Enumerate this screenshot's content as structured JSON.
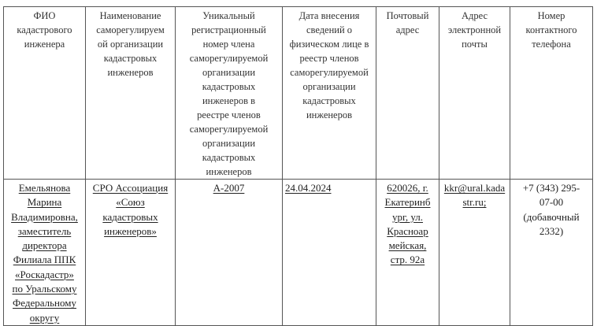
{
  "table": {
    "headers": [
      "ФИО\nкадастрового\nинженера",
      "Наименование\nсаморегулируем\nой организации\nкадастровых\nинженеров",
      "Уникальный\nрегистрационный\nномер члена\nсаморегулируемой\nорганизации\nкадастровых\nинженеров   в\nреестре  членов\nсаморегулируемой\nорганизации\nкадастровых\nинженеров",
      "Дата внесения\nсведений о\nфизическом лице в\nреестр членов\nсаморегулируемой\nорганизации\nкадастровых\nинженеров",
      "Почтовый\nадрес",
      "Адрес\nэлектронной\nпочты",
      "Номер\nконтактного\nтелефона"
    ],
    "rows": [
      {
        "name": "Емельянова\nМарина\nВладимировна,\nзаместитель\nдиректора\nФилиала ППК\n«Роскадастр»\nпо Уральскому\nФедеральному\nокругу",
        "organization": "СРО Ассоциация\n«Союз\nкадастровых\nинженеров»",
        "registration_number": "А-2007",
        "date": "24.04.2024",
        "address": "620026,  г.\nЕкатеринб\nург, ул.\nКрасноар\nмейская,\nстр. 92а",
        "email": "kkr@ural.kada\nstr.ru;",
        "phone": "+7 (343) 295-\n07-00\n(добавочный\n2332)"
      }
    ]
  }
}
